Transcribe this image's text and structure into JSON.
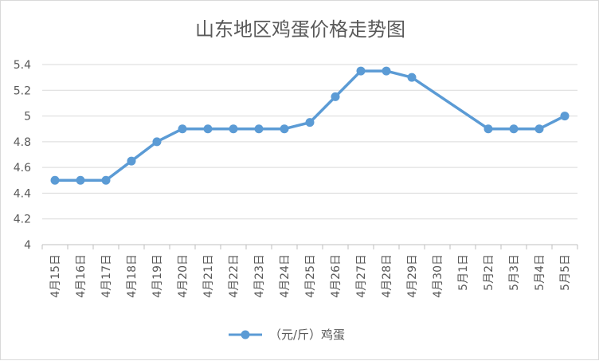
{
  "chart_data": {
    "type": "line",
    "title": "山东地区鸡蛋价格走势图",
    "xlabel": "",
    "ylabel": "",
    "categories": [
      "4月15日",
      "4月16日",
      "4月17日",
      "4月18日",
      "4月19日",
      "4月20日",
      "4月21日",
      "4月22日",
      "4月23日",
      "4月24日",
      "4月25日",
      "4月26日",
      "4月27日",
      "4月28日",
      "4月29日",
      "4月30日",
      "5月1日",
      "5月2日",
      "5月3日",
      "5月4日",
      "5月5日"
    ],
    "series": [
      {
        "name": "（元/斤）鸡蛋",
        "color": "#5b9bd5",
        "values": [
          4.5,
          4.5,
          4.5,
          4.65,
          4.8,
          4.9,
          4.9,
          4.9,
          4.9,
          4.9,
          4.95,
          5.15,
          5.35,
          5.35,
          5.3,
          null,
          null,
          4.9,
          4.9,
          4.9,
          5.0
        ]
      }
    ],
    "ylim": [
      4,
      5.4
    ],
    "yticks": [
      "4",
      "4.2",
      "4.4",
      "4.6",
      "4.8",
      "5",
      "5.2",
      "5.4"
    ],
    "grid": true,
    "legend_position": "bottom",
    "connect_gaps": true
  }
}
